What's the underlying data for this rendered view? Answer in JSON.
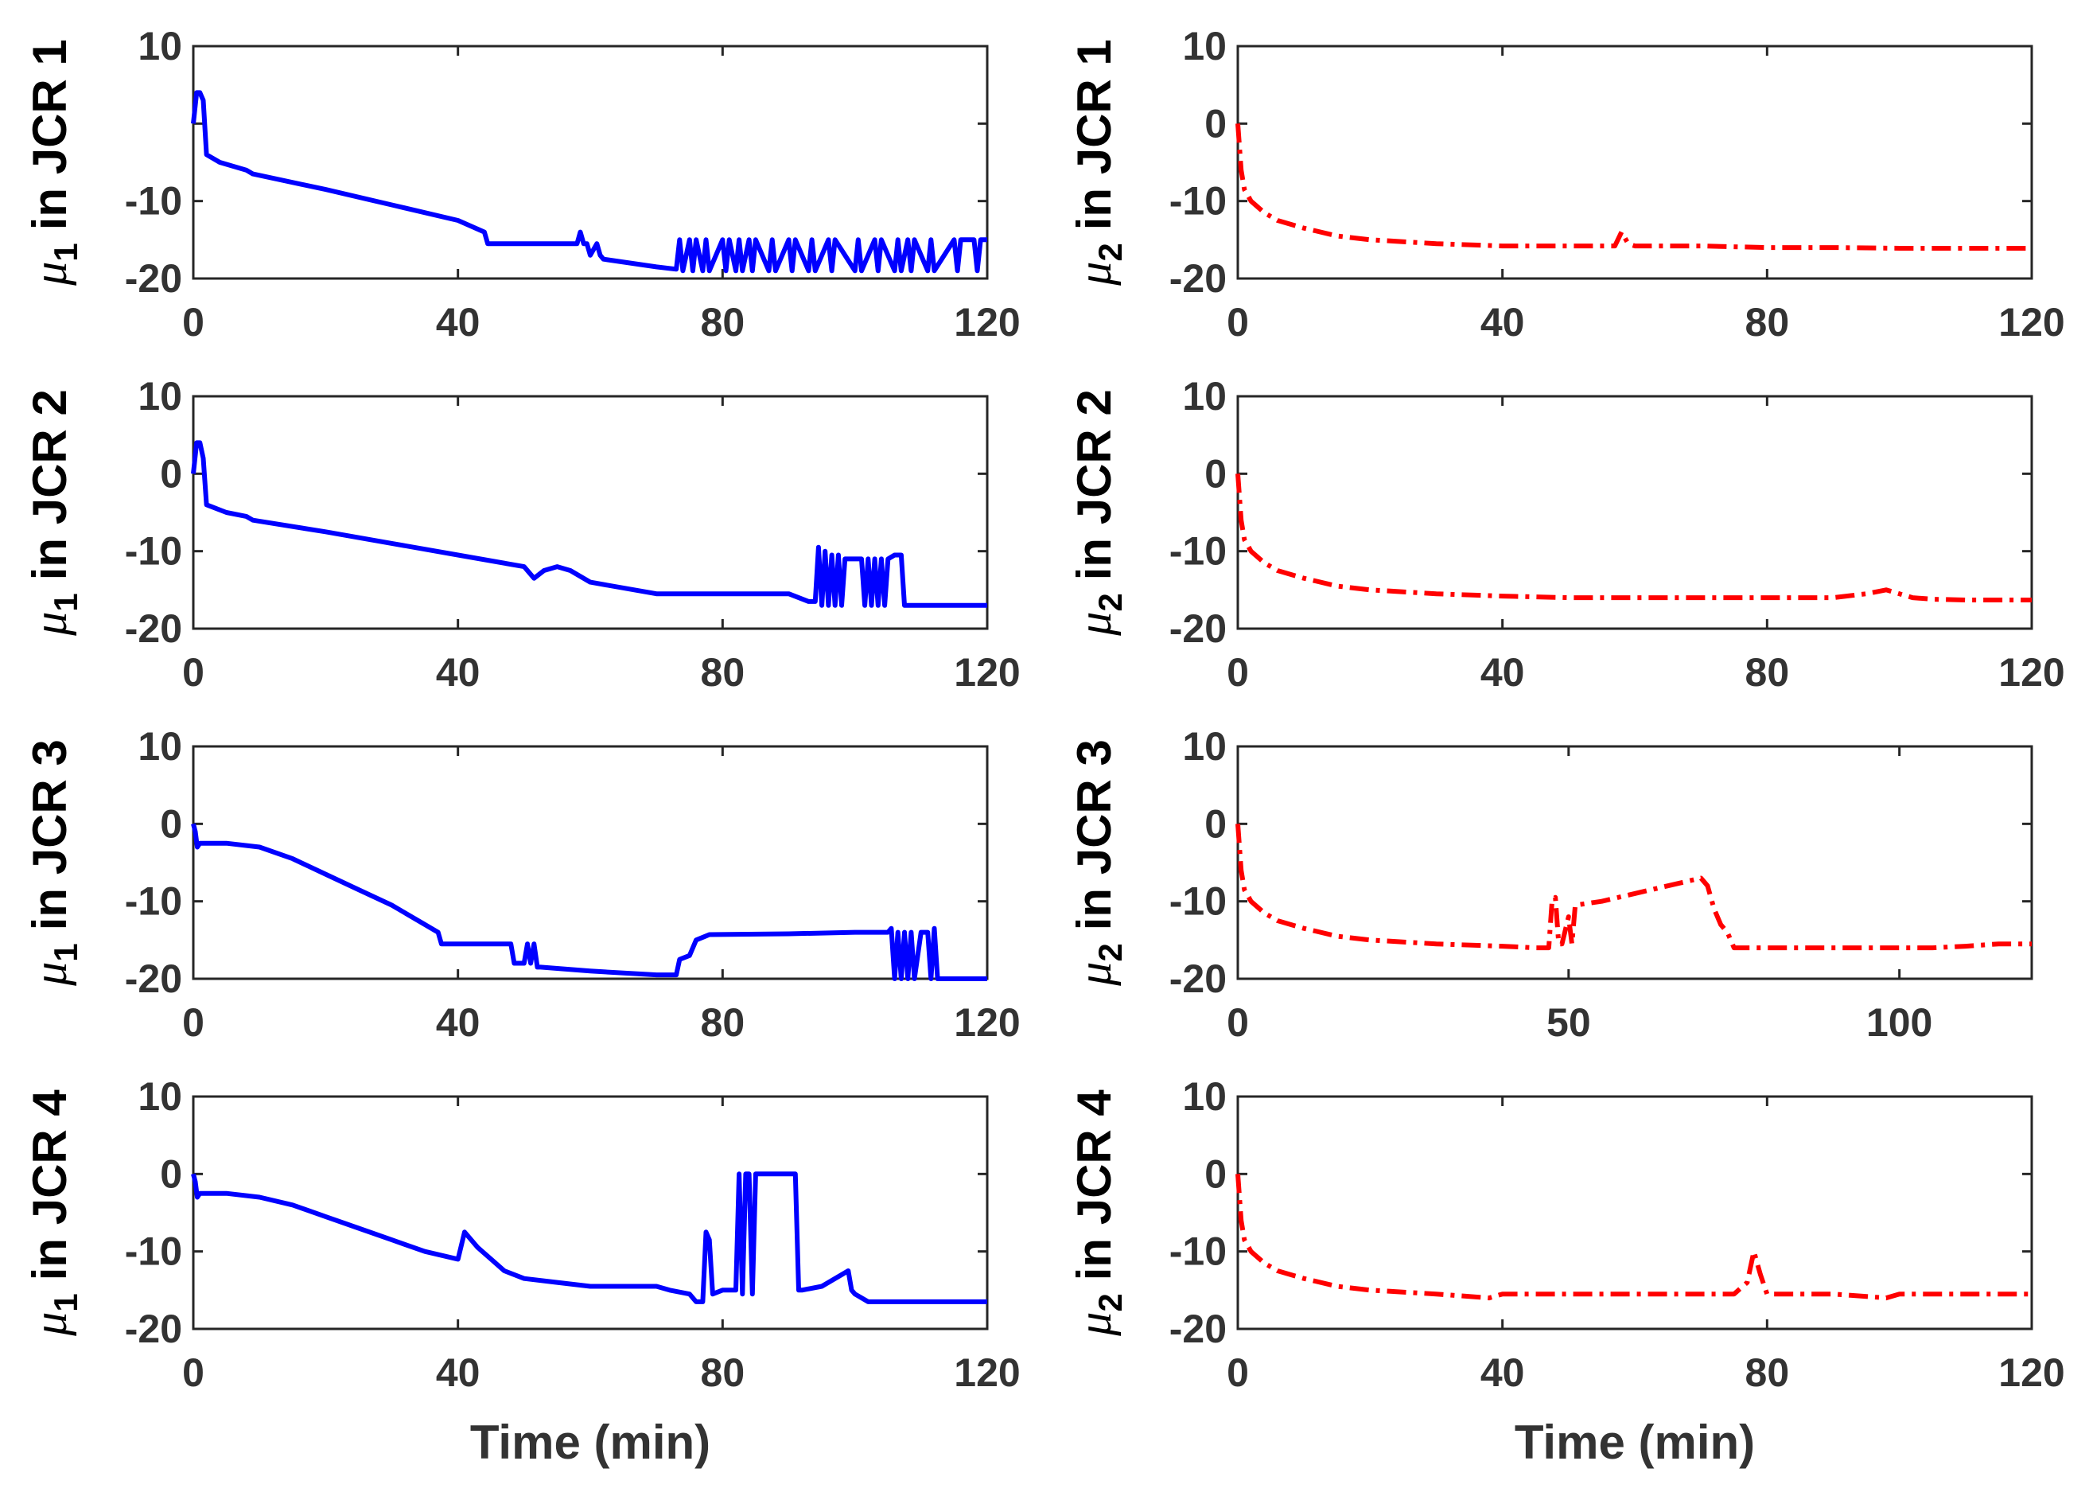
{
  "chart_data": [
    {
      "type": "line",
      "panel": "row1-left",
      "ylabel": {
        "symbol": "μ",
        "subscript": "1",
        "text": "in JCR 1"
      },
      "xlabel": "",
      "xlim": [
        0,
        120
      ],
      "ylim": [
        -20,
        10
      ],
      "xticks": [
        "0",
        "40",
        "80",
        "120"
      ],
      "yticks": [
        "10",
        "",
        "-10",
        "-20"
      ],
      "series": [
        {
          "name": "μ1",
          "color": "#0000ff",
          "style": "solid",
          "x": [
            0,
            0.5,
            1,
            1.5,
            2,
            4,
            8,
            9,
            20,
            30,
            40,
            44,
            44.5,
            58,
            58.5,
            59,
            59.5,
            60,
            61,
            61.5,
            62,
            70,
            73,
            73.5,
            74,
            75,
            75.5,
            76,
            77,
            77.5,
            78,
            80,
            80.5,
            81,
            82,
            82.5,
            83,
            84,
            84.5,
            85,
            87,
            87.5,
            88,
            90,
            90.5,
            91,
            93,
            93.5,
            94,
            96,
            96.5,
            97,
            100,
            100.5,
            101,
            103,
            103.5,
            104,
            106,
            106.5,
            107,
            108,
            108.5,
            109,
            111,
            111.5,
            112,
            115,
            115.5,
            116,
            118,
            118.5,
            119,
            120
          ],
          "y": [
            0,
            4,
            4,
            3,
            -4,
            -5,
            -6,
            -6.5,
            -8.5,
            -10.5,
            -12.5,
            -14,
            -15.5,
            -15.5,
            -14,
            -15.5,
            -15.5,
            -17,
            -15.5,
            -17,
            -17.5,
            -18.5,
            -18.8,
            -15,
            -19,
            -15,
            -19,
            -15,
            -19,
            -15,
            -19,
            -15,
            -19,
            -15,
            -19,
            -15,
            -19,
            -15,
            -19,
            -15,
            -19,
            -15,
            -19,
            -15,
            -19,
            -15,
            -19,
            -15,
            -19,
            -15,
            -19,
            -15,
            -19,
            -15,
            -19,
            -15,
            -19,
            -15,
            -19,
            -15,
            -19,
            -15,
            -19,
            -15,
            -19,
            -15,
            -19,
            -15,
            -19,
            -15,
            -15,
            -19,
            -15,
            -15
          ]
        }
      ]
    },
    {
      "type": "line",
      "panel": "row1-right",
      "ylabel": {
        "symbol": "μ",
        "subscript": "2",
        "text": "in JCR 1"
      },
      "xlabel": "",
      "xlim": [
        0,
        120
      ],
      "ylim": [
        -20,
        10
      ],
      "xticks": [
        "0",
        "40",
        "80",
        "120"
      ],
      "yticks": [
        "10",
        "0",
        "-10",
        "-20"
      ],
      "series": [
        {
          "name": "μ2",
          "color": "#ff0000",
          "style": "dashdot",
          "x": [
            0,
            0.5,
            1,
            2,
            4,
            6,
            10,
            15,
            20,
            30,
            40,
            50,
            57,
            58,
            59,
            60,
            70,
            80,
            90,
            100,
            110,
            120
          ],
          "y": [
            0,
            -6,
            -8.5,
            -10,
            -11.5,
            -12.5,
            -13.5,
            -14.5,
            -15,
            -15.5,
            -15.8,
            -15.8,
            -15.8,
            -14,
            -15.5,
            -15.8,
            -15.8,
            -16,
            -16,
            -16.1,
            -16.1,
            -16.1
          ]
        }
      ]
    },
    {
      "type": "line",
      "panel": "row2-left",
      "ylabel": {
        "symbol": "μ",
        "subscript": "1",
        "text": "in JCR 2"
      },
      "xlabel": "",
      "xlim": [
        0,
        120
      ],
      "ylim": [
        -20,
        10
      ],
      "xticks": [
        "0",
        "40",
        "80",
        "120"
      ],
      "yticks": [
        "10",
        "0",
        "-10",
        "-20"
      ],
      "series": [
        {
          "name": "μ1",
          "color": "#0000ff",
          "style": "solid",
          "x": [
            0,
            0.5,
            1,
            1.5,
            2,
            5,
            8,
            9,
            20,
            30,
            40,
            50,
            51.5,
            53,
            55,
            57,
            60,
            70,
            80,
            90,
            93,
            94,
            94.5,
            95,
            95.5,
            96,
            96.5,
            97,
            97.5,
            98,
            98.5,
            99,
            101,
            101.5,
            102,
            102.5,
            103,
            103.5,
            104,
            104.5,
            105,
            106,
            107,
            107.5,
            108,
            120
          ],
          "y": [
            0,
            4,
            4,
            2,
            -4,
            -5,
            -5.5,
            -6,
            -7.5,
            -9,
            -10.5,
            -12,
            -13.5,
            -12.5,
            -12,
            -12.5,
            -14,
            -15.5,
            -15.5,
            -15.5,
            -16.5,
            -16.5,
            -9.5,
            -17,
            -10,
            -17,
            -10.5,
            -17,
            -10.5,
            -17,
            -11,
            -11,
            -11,
            -17,
            -11,
            -17,
            -11,
            -17,
            -11,
            -17,
            -11,
            -10.5,
            -10.5,
            -17,
            -17,
            -17
          ]
        }
      ]
    },
    {
      "type": "line",
      "panel": "row2-right",
      "ylabel": {
        "symbol": "μ",
        "subscript": "2",
        "text": "in JCR 2"
      },
      "xlabel": "",
      "xlim": [
        0,
        120
      ],
      "ylim": [
        -20,
        10
      ],
      "xticks": [
        "0",
        "40",
        "80",
        "120"
      ],
      "yticks": [
        "10",
        "0",
        "-10",
        "-20"
      ],
      "series": [
        {
          "name": "μ2",
          "color": "#ff0000",
          "style": "dashdot",
          "x": [
            0,
            0.5,
            1,
            2,
            4,
            6,
            10,
            15,
            20,
            30,
            40,
            50,
            60,
            70,
            80,
            90,
            95,
            98,
            100,
            102,
            105,
            110,
            120
          ],
          "y": [
            0,
            -6,
            -8.5,
            -10,
            -11.5,
            -12.5,
            -13.5,
            -14.5,
            -15,
            -15.5,
            -15.8,
            -16,
            -16,
            -16,
            -16,
            -16,
            -15.5,
            -15,
            -15.5,
            -16,
            -16.2,
            -16.3,
            -16.3
          ]
        }
      ]
    },
    {
      "type": "line",
      "panel": "row3-left",
      "ylabel": {
        "symbol": "μ",
        "subscript": "1",
        "text": "in JCR 3"
      },
      "xlabel": "",
      "xlim": [
        0,
        120
      ],
      "ylim": [
        -20,
        10
      ],
      "xticks": [
        "0",
        "40",
        "80",
        "120"
      ],
      "yticks": [
        "10",
        "0",
        "-10",
        "-20"
      ],
      "series": [
        {
          "name": "μ1",
          "color": "#0000ff",
          "style": "solid",
          "x": [
            0,
            0.3,
            0.6,
            1,
            3,
            5,
            10,
            15,
            20,
            25,
            30,
            35,
            37,
            37.5,
            48,
            48.5,
            50,
            50.5,
            51,
            51.5,
            52,
            52.5,
            60,
            70,
            73,
            73.5,
            75,
            76,
            78,
            90,
            100,
            105,
            105.5,
            106,
            106.5,
            107,
            107.5,
            108,
            108.5,
            109,
            110,
            111,
            111.5,
            112,
            112.5,
            120
          ],
          "y": [
            0,
            -1,
            -3,
            -2.5,
            -2.5,
            -2.5,
            -3,
            -4.5,
            -6.5,
            -8.5,
            -10.5,
            -13,
            -14,
            -15.5,
            -15.5,
            -18,
            -18,
            -15.5,
            -18,
            -15.5,
            -18.5,
            -18.5,
            -19,
            -19.5,
            -19.5,
            -17.5,
            -17,
            -15,
            -14.3,
            -14.2,
            -14,
            -14,
            -13.5,
            -20,
            -14,
            -20,
            -14,
            -20,
            -14,
            -20,
            -14,
            -14,
            -20,
            -13.5,
            -20,
            -20
          ]
        }
      ]
    },
    {
      "type": "line",
      "panel": "row3-right",
      "ylabel": {
        "symbol": "μ",
        "subscript": "2",
        "text": "in JCR 3"
      },
      "xlabel": "",
      "xlim": [
        0,
        120
      ],
      "ylim": [
        -20,
        10
      ],
      "xticks": [
        "0",
        "50",
        "100"
      ],
      "yticks": [
        "10",
        "0",
        "-10",
        "-20"
      ],
      "series": [
        {
          "name": "μ2",
          "color": "#ff0000",
          "style": "dashdot",
          "x": [
            0,
            0.5,
            1,
            2,
            4,
            6,
            10,
            15,
            20,
            30,
            40,
            45,
            47,
            47.5,
            48,
            48.5,
            49,
            50,
            50.5,
            51,
            55,
            60,
            65,
            70,
            71,
            72,
            73,
            74,
            75,
            80,
            90,
            100,
            105,
            110,
            115,
            120
          ],
          "y": [
            0,
            -6,
            -8.5,
            -10,
            -11.5,
            -12.5,
            -13.5,
            -14.5,
            -15,
            -15.5,
            -15.8,
            -16,
            -16,
            -10,
            -9.5,
            -15.5,
            -15.5,
            -12,
            -15.5,
            -10.5,
            -10,
            -9,
            -8,
            -7,
            -8,
            -11,
            -13,
            -14,
            -16,
            -16,
            -16,
            -16,
            -16,
            -15.8,
            -15.5,
            -15.5
          ]
        }
      ]
    },
    {
      "type": "line",
      "panel": "row4-left",
      "ylabel": {
        "symbol": "μ",
        "subscript": "1",
        "text": "in JCR 4"
      },
      "xlabel": "Time (min)",
      "xlim": [
        0,
        120
      ],
      "ylim": [
        -20,
        10
      ],
      "xticks": [
        "0",
        "40",
        "80",
        "120"
      ],
      "yticks": [
        "10",
        "0",
        "-10",
        "-20"
      ],
      "series": [
        {
          "name": "μ1",
          "color": "#0000ff",
          "style": "solid",
          "x": [
            0,
            0.3,
            0.6,
            1,
            3,
            5,
            10,
            15,
            20,
            25,
            30,
            35,
            40,
            41,
            43,
            45,
            47,
            50,
            55,
            60,
            65,
            70,
            72,
            75,
            76,
            77,
            77.5,
            78,
            78.5,
            80,
            82,
            82.5,
            83,
            83.5,
            84,
            84.5,
            85,
            85.5,
            86,
            91,
            91.5,
            92,
            95,
            98,
            99,
            99.5,
            100,
            102,
            110,
            120
          ],
          "y": [
            0,
            -1,
            -3,
            -2.5,
            -2.5,
            -2.5,
            -3,
            -4,
            -5.5,
            -7,
            -8.5,
            -10,
            -11,
            -7.5,
            -9.5,
            -11,
            -12.5,
            -13.5,
            -14,
            -14.5,
            -14.5,
            -14.5,
            -15,
            -15.5,
            -16.5,
            -16.5,
            -7.5,
            -8.5,
            -15.5,
            -15,
            -15,
            0,
            -15.5,
            0,
            0,
            -15.5,
            0,
            0,
            0,
            0,
            -15,
            -15,
            -14.5,
            -13,
            -12.5,
            -15,
            -15.5,
            -16.5,
            -16.5,
            -16.5
          ]
        }
      ]
    },
    {
      "type": "line",
      "panel": "row4-right",
      "ylabel": {
        "symbol": "μ",
        "subscript": "2",
        "text": "in JCR 4"
      },
      "xlabel": "Time (min)",
      "xlim": [
        0,
        120
      ],
      "ylim": [
        -20,
        10
      ],
      "xticks": [
        "0",
        "40",
        "80",
        "120"
      ],
      "yticks": [
        "10",
        "0",
        "-10",
        "-20"
      ],
      "series": [
        {
          "name": "μ2",
          "color": "#ff0000",
          "style": "dashdot",
          "x": [
            0,
            0.5,
            1,
            2,
            4,
            6,
            10,
            15,
            20,
            30,
            38,
            40,
            45,
            50,
            60,
            70,
            75,
            77,
            78,
            79,
            80,
            85,
            90,
            98,
            100,
            105,
            110,
            120
          ],
          "y": [
            0,
            -6,
            -8.5,
            -10,
            -11.5,
            -12.5,
            -13.5,
            -14.5,
            -15,
            -15.5,
            -16,
            -15.5,
            -15.5,
            -15.5,
            -15.5,
            -15.5,
            -15.5,
            -14,
            -10,
            -13,
            -15.5,
            -15.5,
            -15.5,
            -16,
            -15.5,
            -15.5,
            -15.5,
            -15.5
          ]
        }
      ]
    }
  ]
}
